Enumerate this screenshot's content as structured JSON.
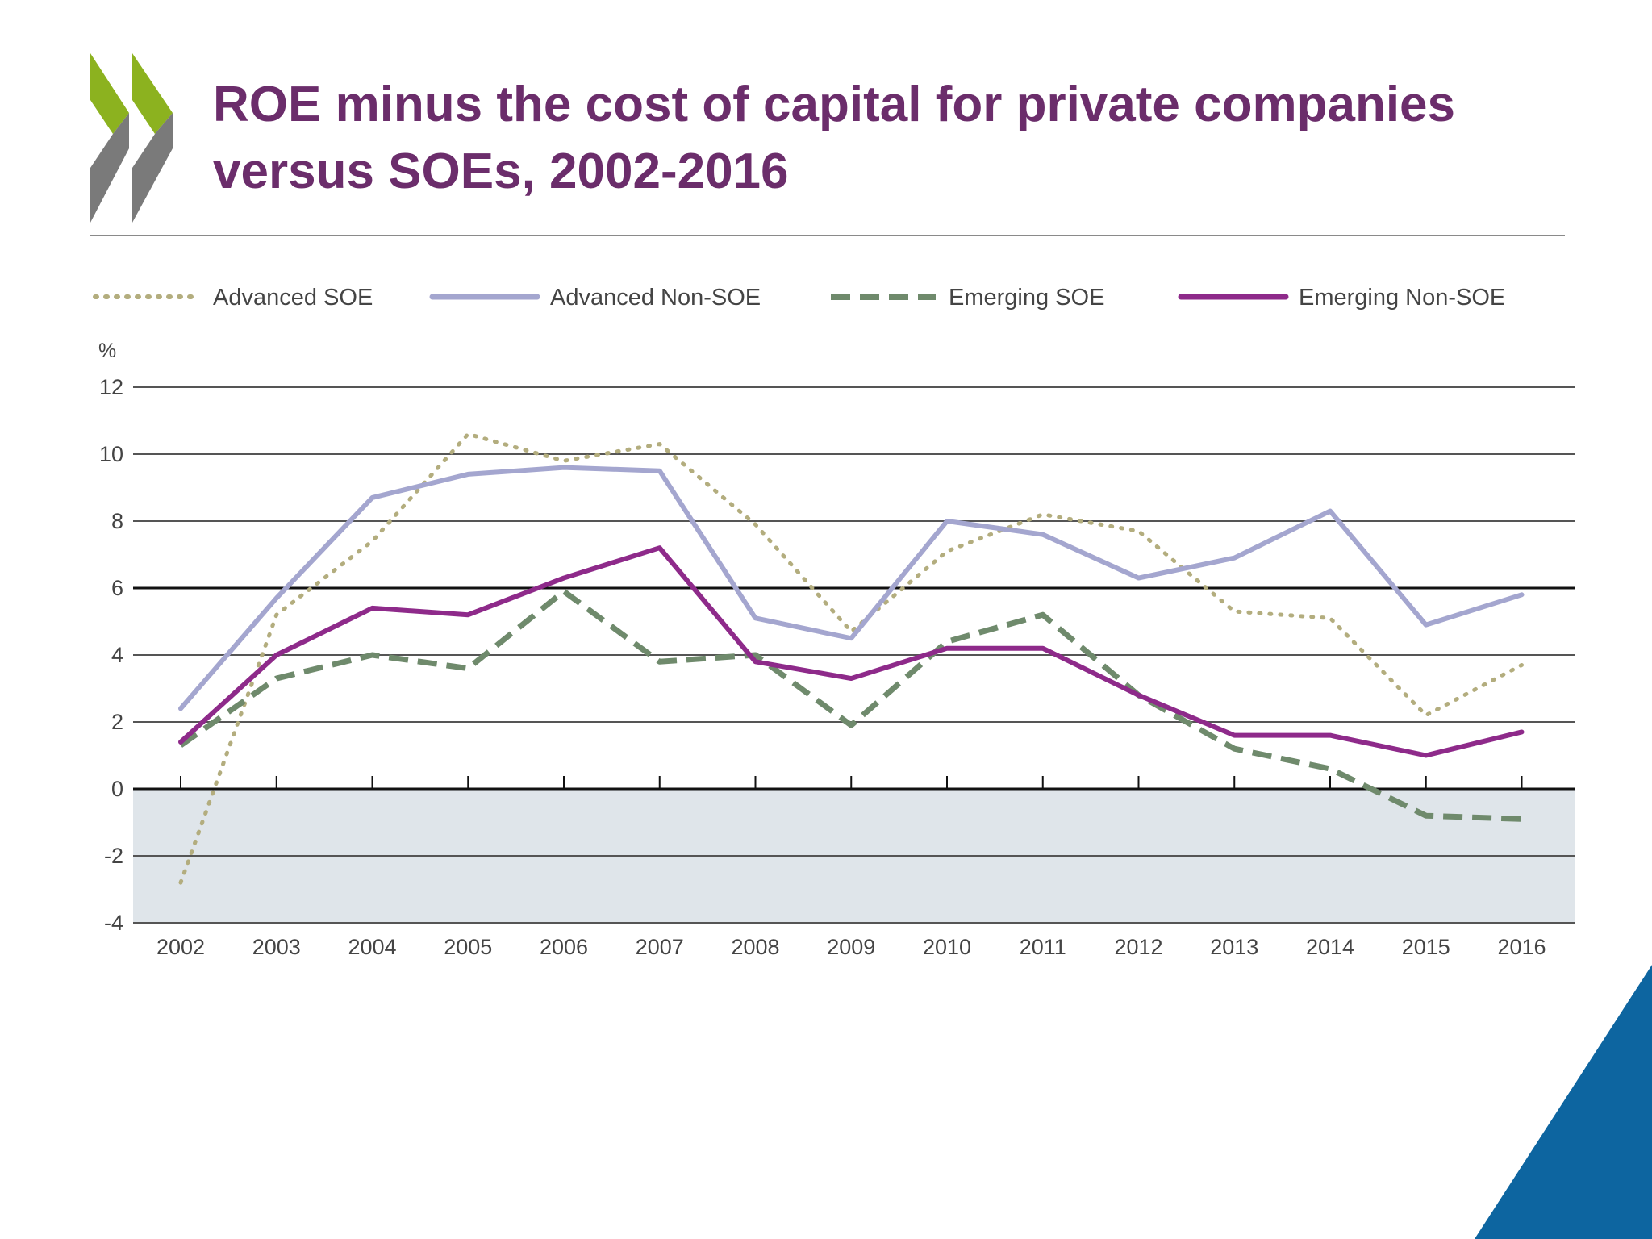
{
  "slide": {
    "title_line1": "ROE minus the cost of capital for private companies",
    "title_line2": "versus SOEs, 2002-2016",
    "title_color": "#6b2d6b",
    "logo_colors": {
      "green": "#8cb21f",
      "grey": "#7a7a7a"
    },
    "corner_color": "#0d65a0"
  },
  "chart_data": {
    "type": "line",
    "title": "",
    "xlabel": "",
    "ylabel": "%",
    "ylim": [
      -4,
      12
    ],
    "yticks": [
      12,
      10,
      8,
      6,
      4,
      2,
      0,
      -2,
      -4
    ],
    "x": [
      2002,
      2003,
      2004,
      2005,
      2006,
      2007,
      2008,
      2009,
      2010,
      2011,
      2012,
      2013,
      2014,
      2015,
      2016
    ],
    "negative_region_color": "#dfe5ea",
    "legend_position": "top",
    "grid": true,
    "series": [
      {
        "name": "Advanced SOE",
        "style": "dotted",
        "color": "#b3ad7e",
        "values": [
          -2.8,
          5.2,
          7.4,
          10.6,
          9.8,
          10.3,
          7.9,
          4.7,
          7.1,
          8.2,
          7.7,
          5.3,
          5.1,
          2.2,
          3.7
        ]
      },
      {
        "name": "Advanced Non-SOE",
        "style": "solid",
        "color": "#a4a6cf",
        "values": [
          2.4,
          5.7,
          8.7,
          9.4,
          9.6,
          9.5,
          5.1,
          4.5,
          8.0,
          7.6,
          6.3,
          6.9,
          8.3,
          4.9,
          5.8
        ]
      },
      {
        "name": "Emerging  SOE",
        "style": "dashed",
        "color": "#6f8a6c",
        "values": [
          1.3,
          3.3,
          4.0,
          3.6,
          5.9,
          3.8,
          4.0,
          1.9,
          4.4,
          5.2,
          2.8,
          1.2,
          0.6,
          -0.8,
          -0.9
        ]
      },
      {
        "name": "Emerging Non-SOE",
        "style": "solid",
        "color": "#8e2a8a",
        "values": [
          1.4,
          4.0,
          5.4,
          5.2,
          6.3,
          7.2,
          3.8,
          3.3,
          4.2,
          4.2,
          2.8,
          1.6,
          1.6,
          1.0,
          1.7
        ]
      }
    ]
  }
}
